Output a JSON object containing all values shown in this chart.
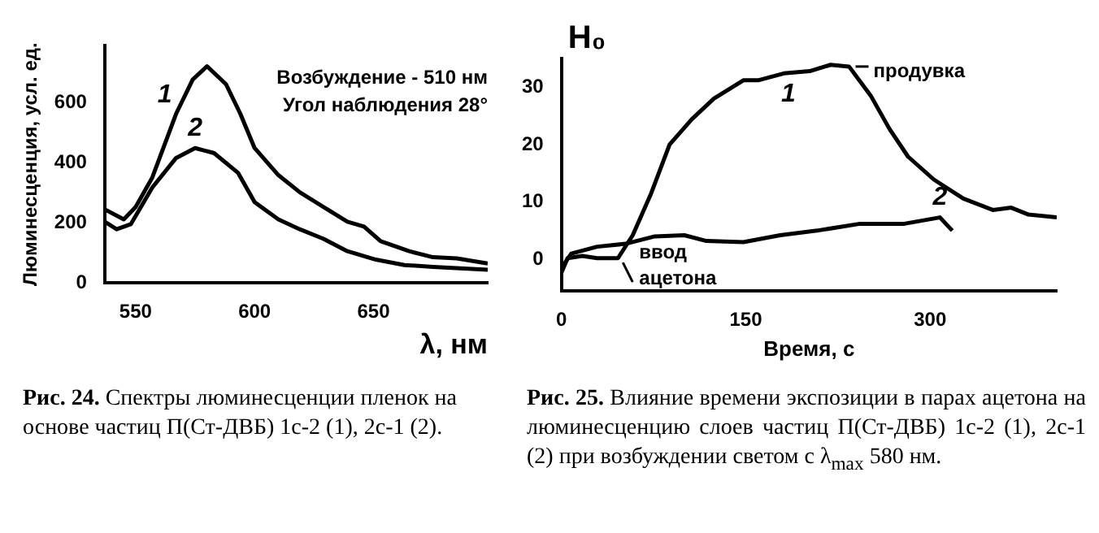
{
  "chart_data": [
    {
      "type": "line",
      "xlabel": "λ, нм",
      "ylabel": "Люминесценция, усл. ед.",
      "xlim": [
        537,
        698
      ],
      "ylim": [
        0,
        790
      ],
      "xticks": [
        550,
        600,
        650
      ],
      "yticks": [
        0,
        200,
        400,
        600
      ],
      "grid": false,
      "legend": false,
      "marker": "none",
      "line_style": "solid",
      "series": [
        {
          "name": "1",
          "color": "#000000",
          "x": [
            537,
            545,
            550,
            557,
            567,
            574,
            580,
            588,
            594,
            600,
            610,
            619,
            629,
            639,
            646,
            653,
            665,
            675,
            685,
            698
          ],
          "values": [
            245,
            212,
            253,
            351,
            563,
            677,
            721,
            661,
            563,
            449,
            359,
            302,
            253,
            204,
            188,
            139,
            106,
            86,
            82,
            65
          ]
        },
        {
          "name": "2",
          "color": "#000000",
          "x": [
            537,
            542,
            548,
            557,
            567,
            575,
            583,
            593,
            600,
            610,
            619,
            629,
            639,
            651,
            663,
            675,
            698
          ],
          "values": [
            204,
            179,
            196,
            318,
            416,
            449,
            432,
            367,
            269,
            212,
            179,
            147,
            106,
            78,
            60,
            54,
            44
          ]
        }
      ],
      "annotations": [
        "Возбуждение - 510 нм",
        "Угол наблюдения 28°",
        "Рис. 24. Спектры люминесценции пленок на основе частиц П(Ст-ДВБ) 1с-2 (1), 2с-1 (2)."
      ]
    },
    {
      "type": "line",
      "xlabel": "Время, с",
      "ylabel": "H₀",
      "xlim": [
        0,
        403
      ],
      "ylim": [
        -5.5,
        35
      ],
      "xticks": [
        0,
        150,
        300
      ],
      "yticks": [
        0,
        10,
        20,
        30
      ],
      "grid": false,
      "legend": false,
      "marker": "none",
      "line_style": "solid",
      "series": [
        {
          "name": "1",
          "color": "#000000",
          "x": [
            0,
            5,
            17,
            29,
            46,
            58,
            73,
            88,
            106,
            124,
            148,
            160,
            181,
            202,
            219,
            234,
            252,
            267,
            282,
            303,
            327,
            351,
            366,
            380,
            403
          ],
          "values": [
            -2.3,
            0.2,
            0.6,
            0.2,
            0.2,
            4.2,
            11.5,
            20,
            24.4,
            28,
            31.2,
            31.2,
            32.4,
            32.8,
            33.9,
            33.6,
            28.4,
            22.7,
            17.9,
            13.9,
            10.6,
            8.6,
            9,
            7.8,
            7.3
          ]
        },
        {
          "name": "2",
          "color": "#000000",
          "x": [
            0,
            8,
            29,
            52,
            76,
            100,
            118,
            148,
            178,
            208,
            243,
            279,
            308,
            318
          ],
          "values": [
            -1.5,
            1,
            2.2,
            2.7,
            4,
            4.2,
            3.2,
            3,
            4.2,
            5,
            6.2,
            6.2,
            7.3,
            5
          ]
        }
      ],
      "annotations": [
        {
          "text": "продувка",
          "x": 234,
          "y": 33.6
        },
        {
          "text": "ввод ацетона",
          "x": 50,
          "y": 0
        },
        "Рис. 25. Влияние времени экспозиции в парах ацетона на люминесценцию слоев частиц П(Ст-ДВБ) 1с-2 (1), 2с-1 (2) при возбуждении светом с λ$_{max}$ 580 нм."
      ]
    }
  ]
}
